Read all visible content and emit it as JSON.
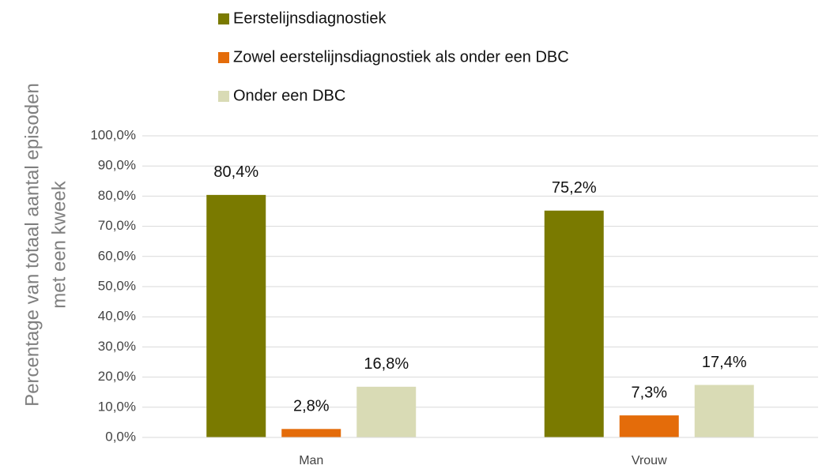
{
  "chart_data": {
    "type": "bar",
    "ylabel": [
      "Percentage van totaal aantal episoden",
      "met een kweek"
    ],
    "categories": [
      "Man",
      "Vrouw"
    ],
    "series": [
      {
        "name": "Eerstelijnsdiagnostiek",
        "color": "#7a7a00",
        "values": [
          80.4,
          75.2
        ],
        "value_labels": [
          "80,4%",
          "75,2%"
        ]
      },
      {
        "name": "Zowel eerstelijnsdiagnostiek als onder een DBC",
        "color": "#e46c0a",
        "values": [
          2.8,
          7.3
        ],
        "value_labels": [
          "2,8%",
          "7,3%"
        ]
      },
      {
        "name": "Onder een DBC",
        "color": "#d9dbb5",
        "values": [
          16.8,
          17.4
        ],
        "value_labels": [
          "16,8%",
          "17,4%"
        ]
      }
    ],
    "ylim": [
      0,
      100
    ],
    "yticks": [
      {
        "value": 0,
        "label": "0,0%"
      },
      {
        "value": 10,
        "label": "10,0%"
      },
      {
        "value": 20,
        "label": "20,0%"
      },
      {
        "value": 30,
        "label": "30,0%"
      },
      {
        "value": 40,
        "label": "40,0%"
      },
      {
        "value": 50,
        "label": "50,0%"
      },
      {
        "value": 60,
        "label": "60,0%"
      },
      {
        "value": 70,
        "label": "70,0%"
      },
      {
        "value": 80,
        "label": "80,0%"
      },
      {
        "value": 90,
        "label": "90,0%"
      },
      {
        "value": 100,
        "label": "100,0%"
      }
    ],
    "grid": true,
    "legend": "top"
  }
}
